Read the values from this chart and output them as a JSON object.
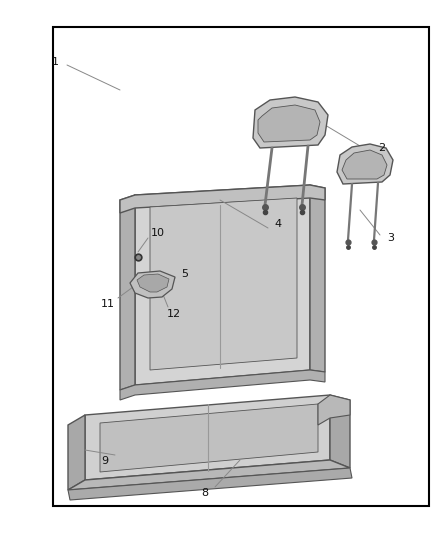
{
  "bg_color": "#ffffff",
  "border_color": "#000000",
  "border": [
    0.12,
    0.05,
    0.98,
    0.95
  ],
  "seat_face": "#d4d4d4",
  "seat_side": "#b0b0b0",
  "seat_top": "#c0c0c0",
  "seat_inner": "#c8c8c8",
  "cushion_face": "#d0d0d0",
  "cushion_side": "#a8a8a8",
  "headrest_body": "#c8c8c8",
  "headrest_inner": "#b4b4b4",
  "arm_body": "#c0c0c0",
  "arm_inner": "#a8a8a8",
  "line_color": "#555555",
  "leader_color": "#666666",
  "label_color": "#111111"
}
